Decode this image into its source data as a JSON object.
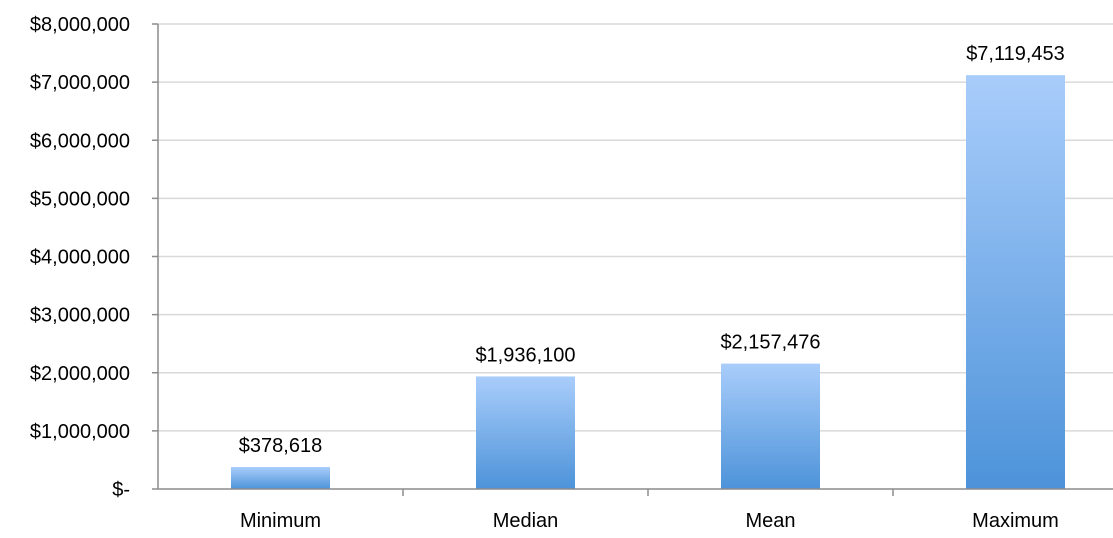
{
  "chart_data": {
    "type": "bar",
    "title": "",
    "xlabel": "",
    "ylabel": "",
    "categories": [
      "Minimum",
      "Median",
      "Mean",
      "Maximum"
    ],
    "values": [
      378618,
      1936100,
      2157476,
      7119453
    ],
    "value_labels": [
      "$378,618",
      "$1,936,100",
      "$2,157,476",
      "$7,119,453"
    ],
    "ylim": [
      0,
      8000000
    ],
    "yticks": [
      0,
      1000000,
      2000000,
      3000000,
      4000000,
      5000000,
      6000000,
      7000000,
      8000000
    ],
    "ytick_labels": [
      "$-",
      "$1,000,000",
      "$2,000,000",
      "$3,000,000",
      "$4,000,000",
      "$5,000,000",
      "$6,000,000",
      "$7,000,000",
      "$8,000,000"
    ],
    "grid": true,
    "legend": "none",
    "colors": {
      "bar_top": "#a9cdfb",
      "bar_bottom": "#4d93d9",
      "gridline": "#d9d9d9",
      "axis": "#8c8c8c"
    }
  }
}
